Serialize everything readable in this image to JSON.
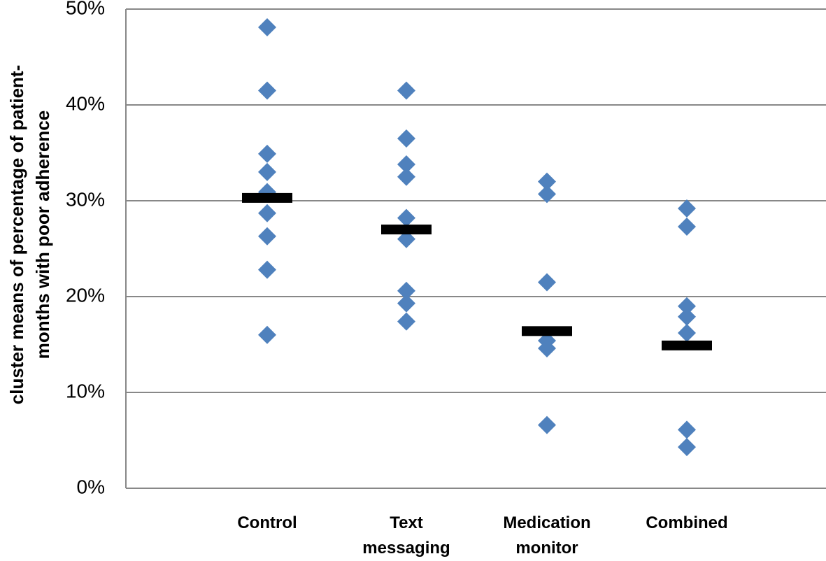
{
  "chart_data": {
    "type": "strip",
    "ylabel": [
      "cluster means of percentage of patient-",
      "months with poor adherence"
    ],
    "categories": [
      "Control",
      "Text messaging",
      "Medication monitor",
      "Combined"
    ],
    "points": [
      [
        48.1,
        41.5,
        34.9,
        33.0,
        30.9,
        28.7,
        26.3,
        22.8,
        16.0
      ],
      [
        41.5,
        36.5,
        33.8,
        32.5,
        28.2,
        26.0,
        20.6,
        19.3,
        17.4
      ],
      [
        32.0,
        30.7,
        21.5,
        15.4,
        14.6,
        6.6
      ],
      [
        29.2,
        27.3,
        19.0,
        17.9,
        16.2,
        6.1,
        4.3
      ]
    ],
    "means": [
      30.3,
      27.0,
      16.4,
      14.9
    ],
    "point_color": "#4f81bd",
    "mean_color": "#000000",
    "ylim": [
      0,
      50
    ],
    "yticks": [
      {
        "value": 0,
        "label": "0%"
      },
      {
        "value": 10,
        "label": "10%"
      },
      {
        "value": 20,
        "label": "20%"
      },
      {
        "value": 30,
        "label": "30%"
      },
      {
        "value": 40,
        "label": "40%"
      },
      {
        "value": 50,
        "label": "50%"
      }
    ],
    "grid": true
  }
}
